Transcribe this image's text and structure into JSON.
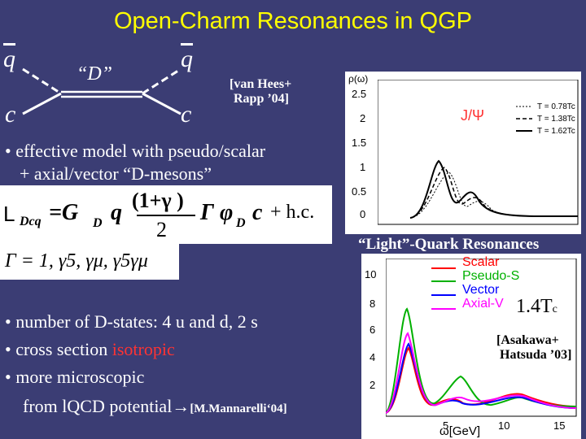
{
  "title": "Open-Charm Resonances in QGP",
  "diagram": {
    "q_bar_left": "q",
    "q_bar_right": "q",
    "c_left": "c",
    "c_right": "c",
    "d_label": "“D”"
  },
  "ref_vanhees": [
    "[van Hees+",
    "Rapp ’04]"
  ],
  "bullet_model": [
    "• effective model with pseudo/scalar",
    "+ axial/vector “D-mesons”"
  ],
  "lagrangian": {
    "lhs": "L",
    "lhs_sub": "Dcq",
    "eq": "=G",
    "eq_sub": "D",
    "q": "q",
    "frac_num": "(1+γ )",
    "frac_den": "2",
    "gamma": "Γ",
    "phi": "φ",
    "phi_sub": "D",
    "c": "c",
    "hc": "+ h.c."
  },
  "gamma_list": "Γ = 1, γ5, γμ, γ5γμ",
  "bullets_lower": {
    "states": "• number of  D-states: 4 u and d, 2  s",
    "cross_prefix": "• cross section ",
    "cross_word": "isotropic",
    "micro1": "• more microscopic",
    "micro2_prefix": "from lQCD potential→",
    "micro2_ref": "[M.Mannarelli‘04]"
  },
  "light_quark_title": "“Light”-Quark Resonances",
  "temp_label": "1.4T",
  "temp_sub": "c",
  "ref_asakawa": [
    "[Asakawa+",
    "Hatsuda ’03]"
  ],
  "jpsi_plot": {
    "ylabel": "ρ(ω)",
    "label": "J/Ψ",
    "yticks": [
      "2.5",
      "2",
      "1.5",
      "1",
      "0.5",
      "0"
    ],
    "legend": [
      "T = 0.78Tc",
      "T = 1.38Tc",
      "T = 1.62Tc"
    ]
  },
  "light_plot": {
    "yticks": [
      "10",
      "8",
      "6",
      "4",
      "2"
    ],
    "xticks": [
      "5",
      "10",
      "15"
    ],
    "xlabel": "ω[GeV]",
    "legend": [
      {
        "name": "Scalar",
        "color": "#ff0000"
      },
      {
        "name": "Pseudo-S",
        "color": "#00b000"
      },
      {
        "name": "Vector",
        "color": "#0000ff"
      },
      {
        "name": "Axial-V",
        "color": "#ff00ff"
      }
    ]
  }
}
